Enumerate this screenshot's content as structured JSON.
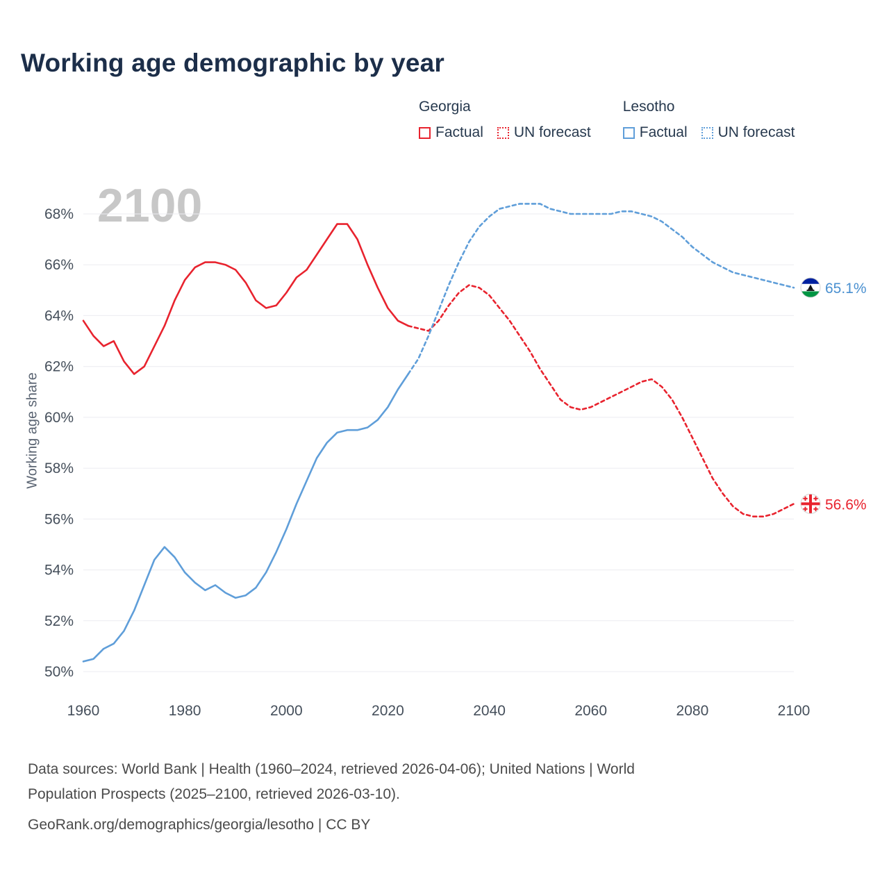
{
  "title": "Working age demographic by year",
  "watermark": "2100",
  "colors": {
    "georgia": "#e8232e",
    "lesotho": "#5f9ed9",
    "title": "#1c2e49",
    "legend": "#27394e",
    "axis": "#454f5b",
    "grid": "#ebebf0",
    "watermark": "#c7c7c7",
    "ylabel": "#5a6472",
    "footer": "#4a4a4a"
  },
  "legend": {
    "groups": [
      {
        "title": "Georgia",
        "items": [
          {
            "label": "Factual",
            "style": "solid"
          },
          {
            "label": "UN forecast",
            "style": "dotted"
          }
        ]
      },
      {
        "title": "Lesotho",
        "items": [
          {
            "label": "Factual",
            "style": "solid"
          },
          {
            "label": "UN forecast",
            "style": "dotted"
          }
        ]
      }
    ]
  },
  "y_axis": {
    "label": "Working age share",
    "ticks": [
      {
        "v": 50,
        "label": "50%"
      },
      {
        "v": 52,
        "label": "52%"
      },
      {
        "v": 54,
        "label": "54%"
      },
      {
        "v": 56,
        "label": "56%"
      },
      {
        "v": 58,
        "label": "58%"
      },
      {
        "v": 60,
        "label": "60%"
      },
      {
        "v": 62,
        "label": "62%"
      },
      {
        "v": 64,
        "label": "64%"
      },
      {
        "v": 66,
        "label": "66%"
      },
      {
        "v": 68,
        "label": "68%"
      }
    ]
  },
  "x_axis": {
    "ticks": [
      {
        "v": 1960,
        "label": "1960"
      },
      {
        "v": 1980,
        "label": "1980"
      },
      {
        "v": 2000,
        "label": "2000"
      },
      {
        "v": 2020,
        "label": "2020"
      },
      {
        "v": 2040,
        "label": "2040"
      },
      {
        "v": 2060,
        "label": "2060"
      },
      {
        "v": 2080,
        "label": "2080"
      },
      {
        "v": 2100,
        "label": "2100"
      }
    ]
  },
  "end_labels": [
    {
      "name": "lesotho",
      "flag": "lesotho",
      "label": "65.1%",
      "value": 65.1,
      "color": "#4a90d0"
    },
    {
      "name": "georgia",
      "flag": "georgia",
      "label": "56.6%",
      "value": 56.6,
      "color": "#e8232e"
    }
  ],
  "footer": {
    "line1": "Data sources: World Bank | Health (1960–2024, retrieved 2026-04-06); United Nations | World",
    "line2": "Population Prospects (2025–2100, retrieved 2026-03-10).",
    "line3": "GeoRank.org/demographics/georgia/lesotho | CC BY"
  },
  "chart_data": {
    "type": "line",
    "title": "Working age demographic by year",
    "ylabel": "Working age share",
    "ylim": [
      50,
      68
    ],
    "xlim": [
      1960,
      2100
    ],
    "grid": "horizontal",
    "legend_position": "top-right",
    "series": [
      {
        "id": "georgia-factual",
        "country": "Georgia",
        "kind": "Factual",
        "color": "#e8232e",
        "dashed": false,
        "x": [
          1960,
          1962,
          1964,
          1966,
          1968,
          1970,
          1972,
          1974,
          1976,
          1978,
          1980,
          1982,
          1984,
          1986,
          1988,
          1990,
          1992,
          1994,
          1996,
          1998,
          2000,
          2002,
          2004,
          2006,
          2008,
          2010,
          2012,
          2014,
          2016,
          2018,
          2020,
          2022,
          2024
        ],
        "y": [
          63.8,
          63.2,
          62.8,
          63.0,
          62.2,
          61.7,
          62.0,
          62.8,
          63.6,
          64.6,
          65.4,
          65.9,
          66.1,
          66.1,
          66.0,
          65.8,
          65.3,
          64.6,
          64.3,
          64.4,
          64.9,
          65.5,
          65.8,
          66.4,
          67.0,
          67.6,
          67.6,
          67.0,
          66.0,
          65.1,
          64.3,
          63.8,
          63.6
        ]
      },
      {
        "id": "georgia-forecast",
        "country": "Georgia",
        "kind": "UN forecast",
        "color": "#e8232e",
        "dashed": true,
        "x": [
          2024,
          2026,
          2028,
          2030,
          2032,
          2034,
          2036,
          2038,
          2040,
          2042,
          2044,
          2046,
          2048,
          2050,
          2052,
          2054,
          2056,
          2058,
          2060,
          2062,
          2064,
          2066,
          2068,
          2070,
          2072,
          2074,
          2076,
          2078,
          2080,
          2082,
          2084,
          2086,
          2088,
          2090,
          2092,
          2094,
          2096,
          2098,
          2100
        ],
        "y": [
          63.6,
          63.5,
          63.4,
          63.8,
          64.4,
          64.9,
          65.2,
          65.1,
          64.8,
          64.3,
          63.8,
          63.2,
          62.6,
          61.9,
          61.3,
          60.7,
          60.4,
          60.3,
          60.4,
          60.6,
          60.8,
          61.0,
          61.2,
          61.4,
          61.5,
          61.2,
          60.7,
          60.0,
          59.2,
          58.4,
          57.6,
          57.0,
          56.5,
          56.2,
          56.1,
          56.1,
          56.2,
          56.4,
          56.6
        ]
      },
      {
        "id": "lesotho-factual",
        "country": "Lesotho",
        "kind": "Factual",
        "color": "#5f9ed9",
        "dashed": false,
        "x": [
          1960,
          1962,
          1964,
          1966,
          1968,
          1970,
          1972,
          1974,
          1976,
          1978,
          1980,
          1982,
          1984,
          1986,
          1988,
          1990,
          1992,
          1994,
          1996,
          1998,
          2000,
          2002,
          2004,
          2006,
          2008,
          2010,
          2012,
          2014,
          2016,
          2018,
          2020,
          2022,
          2024
        ],
        "y": [
          50.4,
          50.5,
          50.9,
          51.1,
          51.6,
          52.4,
          53.4,
          54.4,
          54.9,
          54.5,
          53.9,
          53.5,
          53.2,
          53.4,
          53.1,
          52.9,
          53.0,
          53.3,
          53.9,
          54.7,
          55.6,
          56.6,
          57.5,
          58.4,
          59.0,
          59.4,
          59.5,
          59.5,
          59.6,
          59.9,
          60.4,
          61.1,
          61.7
        ]
      },
      {
        "id": "lesotho-forecast",
        "country": "Lesotho",
        "kind": "UN forecast",
        "color": "#5f9ed9",
        "dashed": true,
        "x": [
          2024,
          2026,
          2028,
          2030,
          2032,
          2034,
          2036,
          2038,
          2040,
          2042,
          2044,
          2046,
          2048,
          2050,
          2052,
          2054,
          2056,
          2058,
          2060,
          2062,
          2064,
          2066,
          2068,
          2070,
          2072,
          2074,
          2076,
          2078,
          2080,
          2082,
          2084,
          2086,
          2088,
          2090,
          2092,
          2094,
          2096,
          2098,
          2100
        ],
        "y": [
          61.7,
          62.3,
          63.2,
          64.2,
          65.2,
          66.1,
          66.9,
          67.5,
          67.9,
          68.2,
          68.3,
          68.4,
          68.4,
          68.4,
          68.2,
          68.1,
          68.0,
          68.0,
          68.0,
          68.0,
          68.0,
          68.1,
          68.1,
          68.0,
          67.9,
          67.7,
          67.4,
          67.1,
          66.7,
          66.4,
          66.1,
          65.9,
          65.7,
          65.6,
          65.5,
          65.4,
          65.3,
          65.2,
          65.1
        ]
      }
    ]
  }
}
